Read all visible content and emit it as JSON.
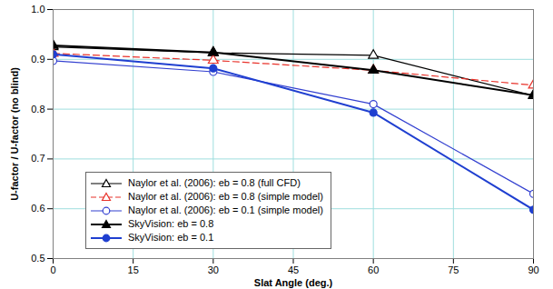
{
  "chart_data": {
    "type": "line",
    "x_label": "Slat Angle (deg.)",
    "y_label": "U-factor / U-factor (no blind)",
    "xlim": [
      0,
      90
    ],
    "xticks": [
      0,
      15,
      30,
      45,
      60,
      75,
      90
    ],
    "ylim": [
      0.5,
      1
    ],
    "yticks": [
      0.5,
      0.6,
      0.7,
      0.8,
      0.9,
      {
        "value": 1,
        "label": "1.0"
      }
    ],
    "grid": true,
    "legend": "lower left",
    "x": [
      0,
      30,
      60,
      90
    ],
    "series": [
      {
        "name": "Naylor et al. (2006): eb = 0.8 (full CFD)",
        "color": "#000000",
        "marker": "triangle-open",
        "line_style": "solid",
        "values": [
          0.925,
          0.913,
          0.908,
          0.827
        ]
      },
      {
        "name": "Naylor et al. (2006): eb = 0.8 (simple model)",
        "color": "#e8322a",
        "marker": "triangle-open",
        "line_style": "dashed",
        "values": [
          0.912,
          0.898,
          0.878,
          0.848
        ]
      },
      {
        "name": "Naylor et al. (2006): eb = 0.1 (simple model)",
        "color": "#3340d0",
        "marker": "circle-open",
        "line_style": "solid",
        "values": [
          0.897,
          0.875,
          0.81,
          0.63
        ]
      },
      {
        "name": "SkyVision: eb = 0.8",
        "color": "#000000",
        "marker": "triangle",
        "line_style": "solid",
        "values": [
          0.928,
          0.914,
          0.878,
          0.828
        ]
      },
      {
        "name": "SkyVision: eb = 0.1",
        "color": "#1f3fd0",
        "marker": "circle",
        "line_style": "solid",
        "values": [
          0.91,
          0.882,
          0.793,
          0.598
        ]
      }
    ]
  }
}
